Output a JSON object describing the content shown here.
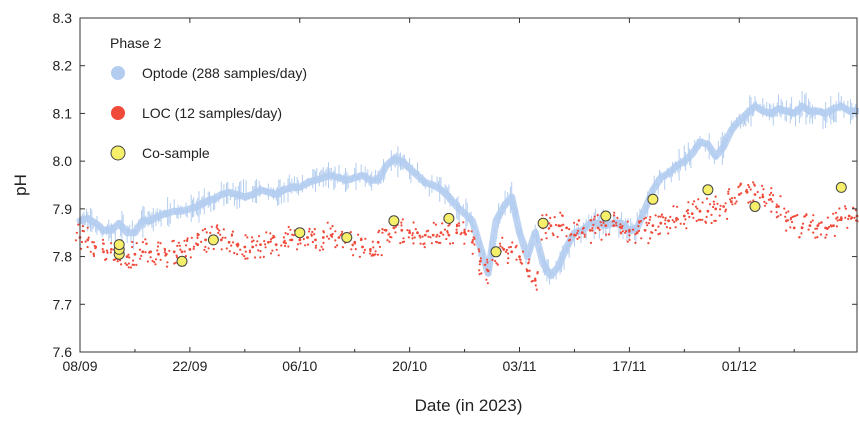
{
  "chart_data": {
    "type": "scatter",
    "title": "",
    "xlabel": "Date (in 2023)",
    "ylabel": "pH",
    "ylim": [
      7.6,
      8.3
    ],
    "yticks": [
      "7.6",
      "7.7",
      "7.8",
      "7.9",
      "8.0",
      "8.1",
      "8.2",
      "8.3"
    ],
    "xlim": [
      "2023-09-08",
      "2023-12-16"
    ],
    "xticks": [
      {
        "date": "2023-09-08",
        "label": "08/09"
      },
      {
        "date": "2023-09-22",
        "label": "22/09"
      },
      {
        "date": "2023-10-06",
        "label": "06/10"
      },
      {
        "date": "2023-10-20",
        "label": "20/10"
      },
      {
        "date": "2023-11-03",
        "label": "03/11"
      },
      {
        "date": "2023-11-17",
        "label": "17/11"
      },
      {
        "date": "2023-12-01",
        "label": "01/12"
      }
    ],
    "grid": false,
    "legend": {
      "position": "top-left",
      "header": "Phase 2",
      "entries": [
        {
          "label": "Optode (288 samples/day)",
          "color": "#b3cdf0"
        },
        {
          "label": "LOC (12 samples/day)",
          "color": "#f04a3a"
        },
        {
          "label": "Co-sample",
          "color": "#f5ef6a"
        }
      ]
    },
    "series": [
      {
        "name": "Optode (288 samples/day)",
        "marker": "dense-line",
        "color": "#b3cdf0",
        "points": [
          [
            "2023-09-08",
            7.875
          ],
          [
            "2023-09-09",
            7.88
          ],
          [
            "2023-09-10",
            7.87
          ],
          [
            "2023-09-11",
            7.855
          ],
          [
            "2023-09-12",
            7.855
          ],
          [
            "2023-09-13",
            7.87
          ],
          [
            "2023-09-14",
            7.85
          ],
          [
            "2023-09-15",
            7.85
          ],
          [
            "2023-09-16",
            7.875
          ],
          [
            "2023-09-17",
            7.875
          ],
          [
            "2023-09-18",
            7.885
          ],
          [
            "2023-09-19",
            7.89
          ],
          [
            "2023-09-20",
            7.895
          ],
          [
            "2023-09-21",
            7.895
          ],
          [
            "2023-09-22",
            7.9
          ],
          [
            "2023-09-23",
            7.905
          ],
          [
            "2023-09-24",
            7.915
          ],
          [
            "2023-09-25",
            7.92
          ],
          [
            "2023-09-26",
            7.93
          ],
          [
            "2023-09-27",
            7.935
          ],
          [
            "2023-09-28",
            7.93
          ],
          [
            "2023-09-29",
            7.925
          ],
          [
            "2023-09-30",
            7.93
          ],
          [
            "2023-10-01",
            7.94
          ],
          [
            "2023-10-02",
            7.935
          ],
          [
            "2023-10-03",
            7.93
          ],
          [
            "2023-10-04",
            7.94
          ],
          [
            "2023-10-05",
            7.945
          ],
          [
            "2023-10-06",
            7.945
          ],
          [
            "2023-10-07",
            7.955
          ],
          [
            "2023-10-08",
            7.96
          ],
          [
            "2023-10-09",
            7.965
          ],
          [
            "2023-10-10",
            7.97
          ],
          [
            "2023-10-11",
            7.965
          ],
          [
            "2023-10-12",
            7.96
          ],
          [
            "2023-10-13",
            7.965
          ],
          [
            "2023-10-14",
            7.97
          ],
          [
            "2023-10-15",
            7.96
          ],
          [
            "2023-10-16",
            7.96
          ],
          [
            "2023-10-17",
            7.99
          ],
          [
            "2023-10-18",
            8.005
          ],
          [
            "2023-10-19",
            8.0
          ],
          [
            "2023-10-20",
            7.985
          ],
          [
            "2023-10-21",
            7.97
          ],
          [
            "2023-10-22",
            7.955
          ],
          [
            "2023-10-23",
            7.95
          ],
          [
            "2023-10-24",
            7.94
          ],
          [
            "2023-10-25",
            7.925
          ],
          [
            "2023-10-26",
            7.905
          ],
          [
            "2023-10-27",
            7.89
          ],
          [
            "2023-10-28",
            7.875
          ],
          [
            "2023-10-29",
            7.82
          ],
          [
            "2023-10-30",
            7.765
          ],
          [
            "2023-10-31",
            7.875
          ],
          [
            "2023-11-01",
            7.905
          ],
          [
            "2023-11-02",
            7.925
          ],
          [
            "2023-11-03",
            7.85
          ],
          [
            "2023-11-04",
            7.8
          ],
          [
            "2023-11-05",
            7.85
          ],
          [
            "2023-11-06",
            7.785
          ],
          [
            "2023-11-07",
            7.76
          ],
          [
            "2023-11-08",
            7.78
          ],
          [
            "2023-11-09",
            7.82
          ],
          [
            "2023-11-10",
            7.85
          ],
          [
            "2023-11-11",
            7.855
          ],
          [
            "2023-11-12",
            7.87
          ],
          [
            "2023-11-13",
            7.87
          ],
          [
            "2023-11-14",
            7.865
          ],
          [
            "2023-11-15",
            7.87
          ],
          [
            "2023-11-16",
            7.87
          ],
          [
            "2023-11-17",
            7.855
          ],
          [
            "2023-11-18",
            7.86
          ],
          [
            "2023-11-19",
            7.9
          ],
          [
            "2023-11-20",
            7.94
          ],
          [
            "2023-11-21",
            7.965
          ],
          [
            "2023-11-22",
            7.975
          ],
          [
            "2023-11-23",
            7.99
          ],
          [
            "2023-11-24",
            8.0
          ],
          [
            "2023-11-25",
            8.015
          ],
          [
            "2023-11-26",
            8.04
          ],
          [
            "2023-11-27",
            8.035
          ],
          [
            "2023-11-28",
            8.01
          ],
          [
            "2023-11-29",
            8.03
          ],
          [
            "2023-11-30",
            8.065
          ],
          [
            "2023-12-01",
            8.085
          ],
          [
            "2023-12-02",
            8.1
          ],
          [
            "2023-12-03",
            8.115
          ],
          [
            "2023-12-04",
            8.105
          ],
          [
            "2023-12-05",
            8.1
          ],
          [
            "2023-12-06",
            8.11
          ],
          [
            "2023-12-07",
            8.105
          ],
          [
            "2023-12-08",
            8.1
          ],
          [
            "2023-12-09",
            8.115
          ],
          [
            "2023-12-10",
            8.105
          ],
          [
            "2023-12-11",
            8.105
          ],
          [
            "2023-12-12",
            8.1
          ],
          [
            "2023-12-13",
            8.11
          ],
          [
            "2023-12-14",
            8.115
          ],
          [
            "2023-12-15",
            8.105
          ],
          [
            "2023-12-16",
            8.105
          ]
        ]
      },
      {
        "name": "LOC (12 samples/day)",
        "marker": "dots",
        "color": "#f04a3a",
        "points": [
          [
            "2023-09-08",
            7.84
          ],
          [
            "2023-09-09",
            7.835
          ],
          [
            "2023-09-10",
            7.82
          ],
          [
            "2023-09-11",
            7.81
          ],
          [
            "2023-09-12",
            7.815
          ],
          [
            "2023-09-13",
            7.8
          ],
          [
            "2023-09-14",
            7.8
          ],
          [
            "2023-09-15",
            7.805
          ],
          [
            "2023-09-16",
            7.81
          ],
          [
            "2023-09-17",
            7.81
          ],
          [
            "2023-09-18",
            7.805
          ],
          [
            "2023-09-19",
            7.805
          ],
          [
            "2023-09-20",
            7.81
          ],
          [
            "2023-09-21",
            7.81
          ],
          [
            "2023-09-22",
            7.815
          ],
          [
            "2023-09-23",
            7.825
          ],
          [
            "2023-09-24",
            7.835
          ],
          [
            "2023-09-25",
            7.84
          ],
          [
            "2023-09-26",
            7.835
          ],
          [
            "2023-09-27",
            7.83
          ],
          [
            "2023-09-28",
            7.825
          ],
          [
            "2023-09-29",
            7.82
          ],
          [
            "2023-09-30",
            7.82
          ],
          [
            "2023-10-01",
            7.825
          ],
          [
            "2023-10-02",
            7.83
          ],
          [
            "2023-10-03",
            7.825
          ],
          [
            "2023-10-04",
            7.83
          ],
          [
            "2023-10-05",
            7.835
          ],
          [
            "2023-10-06",
            7.835
          ],
          [
            "2023-10-07",
            7.84
          ],
          [
            "2023-10-08",
            7.835
          ],
          [
            "2023-10-09",
            7.84
          ],
          [
            "2023-10-10",
            7.845
          ],
          [
            "2023-10-11",
            7.84
          ],
          [
            "2023-10-12",
            7.835
          ],
          [
            "2023-10-13",
            7.83
          ],
          [
            "2023-10-14",
            7.82
          ],
          [
            "2023-10-15",
            7.815
          ],
          [
            "2023-10-16",
            7.83
          ],
          [
            "2023-10-17",
            7.855
          ],
          [
            "2023-10-18",
            7.86
          ],
          [
            "2023-10-19",
            7.855
          ],
          [
            "2023-10-20",
            7.85
          ],
          [
            "2023-10-21",
            7.85
          ],
          [
            "2023-10-22",
            7.845
          ],
          [
            "2023-10-23",
            7.845
          ],
          [
            "2023-10-24",
            7.85
          ],
          [
            "2023-10-25",
            7.845
          ],
          [
            "2023-10-26",
            7.85
          ],
          [
            "2023-10-27",
            7.85
          ],
          [
            "2023-10-28",
            7.83
          ],
          [
            "2023-10-29",
            7.79
          ],
          [
            "2023-10-30",
            7.77
          ],
          [
            "2023-10-31",
            7.805
          ],
          [
            "2023-11-01",
            7.815
          ],
          [
            "2023-11-02",
            7.81
          ],
          [
            "2023-11-03",
            7.8
          ],
          [
            "2023-11-04",
            7.77
          ],
          [
            "2023-11-05",
            7.75
          ],
          [
            "2023-11-06",
            7.86
          ],
          [
            "2023-11-07",
            7.865
          ],
          [
            "2023-11-08",
            7.865
          ],
          [
            "2023-11-09",
            7.86
          ],
          [
            "2023-11-10",
            7.845
          ],
          [
            "2023-11-11",
            7.85
          ],
          [
            "2023-11-12",
            7.855
          ],
          [
            "2023-11-13",
            7.86
          ],
          [
            "2023-11-14",
            7.865
          ],
          [
            "2023-11-15",
            7.865
          ],
          [
            "2023-11-16",
            7.86
          ],
          [
            "2023-11-17",
            7.855
          ],
          [
            "2023-11-18",
            7.85
          ],
          [
            "2023-11-19",
            7.855
          ],
          [
            "2023-11-20",
            7.865
          ],
          [
            "2023-11-21",
            7.87
          ],
          [
            "2023-11-22",
            7.875
          ],
          [
            "2023-11-23",
            7.88
          ],
          [
            "2023-11-24",
            7.885
          ],
          [
            "2023-11-25",
            7.89
          ],
          [
            "2023-11-26",
            7.895
          ],
          [
            "2023-11-27",
            7.895
          ],
          [
            "2023-11-28",
            7.9
          ],
          [
            "2023-11-29",
            7.905
          ],
          [
            "2023-11-30",
            7.915
          ],
          [
            "2023-12-01",
            7.93
          ],
          [
            "2023-12-02",
            7.935
          ],
          [
            "2023-12-03",
            7.93
          ],
          [
            "2023-12-04",
            7.925
          ],
          [
            "2023-12-05",
            7.92
          ],
          [
            "2023-12-06",
            7.905
          ],
          [
            "2023-12-07",
            7.875
          ],
          [
            "2023-12-08",
            7.86
          ],
          [
            "2023-12-09",
            7.86
          ],
          [
            "2023-12-10",
            7.865
          ],
          [
            "2023-12-11",
            7.865
          ],
          [
            "2023-12-12",
            7.86
          ],
          [
            "2023-12-13",
            7.865
          ],
          [
            "2023-12-14",
            7.88
          ],
          [
            "2023-12-15",
            7.885
          ],
          [
            "2023-12-16",
            7.885
          ]
        ]
      },
      {
        "name": "Co-sample",
        "marker": "circle",
        "color": "#f5ef6a",
        "points": [
          [
            "2023-09-13",
            7.805
          ],
          [
            "2023-09-13",
            7.815
          ],
          [
            "2023-09-13",
            7.825
          ],
          [
            "2023-09-21",
            7.79
          ],
          [
            "2023-09-25",
            7.835
          ],
          [
            "2023-10-06",
            7.85
          ],
          [
            "2023-10-12",
            7.84
          ],
          [
            "2023-10-18",
            7.875
          ],
          [
            "2023-10-25",
            7.88
          ],
          [
            "2023-10-31",
            7.81
          ],
          [
            "2023-11-06",
            7.87
          ],
          [
            "2023-11-14",
            7.885
          ],
          [
            "2023-11-20",
            7.92
          ],
          [
            "2023-11-27",
            7.94
          ],
          [
            "2023-12-03",
            7.905
          ],
          [
            "2023-12-14",
            7.945
          ]
        ]
      }
    ]
  }
}
